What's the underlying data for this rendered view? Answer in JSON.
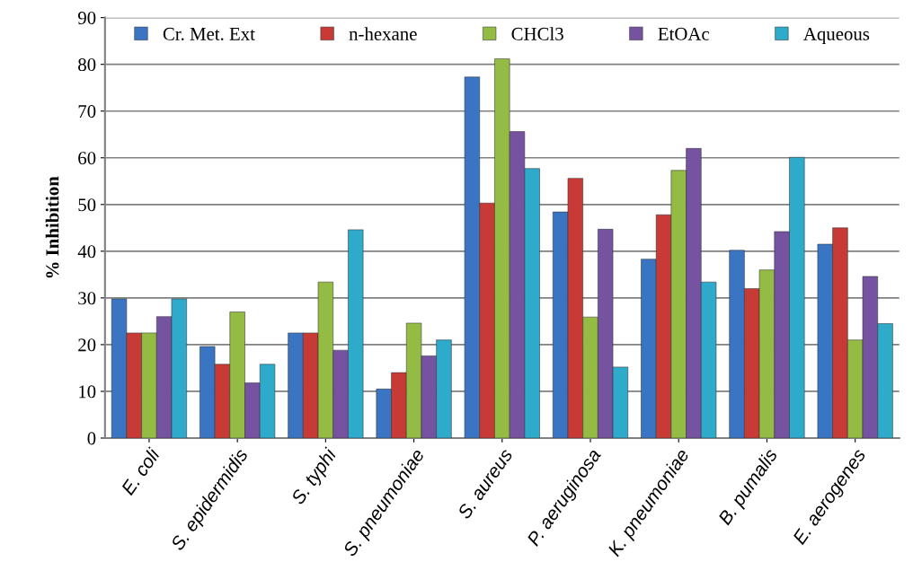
{
  "chart_data": {
    "type": "bar",
    "ylabel": "% Inhibition",
    "categories": [
      "E. coli",
      "S. epidermidis",
      "S. typhi",
      "S. pneumoniae",
      "S. aureus",
      "P. aeruginosa",
      "K. pneumoniae",
      "B. pumalis",
      "E. aerogenes"
    ],
    "series": [
      {
        "name": "Cr. Met. Ext",
        "color": "#3a75c4",
        "values": [
          29.8,
          19.6,
          22.5,
          10.5,
          77.3,
          48.4,
          38.3,
          40.2,
          41.5
        ]
      },
      {
        "name": "n-hexane",
        "color": "#c83a36",
        "values": [
          22.5,
          15.8,
          22.5,
          14,
          50.3,
          55.6,
          47.8,
          32,
          45
        ]
      },
      {
        "name": "CHCl3",
        "color": "#94bc45",
        "values": [
          22.5,
          27,
          33.4,
          24.6,
          81.2,
          25.9,
          57.3,
          36,
          21
        ]
      },
      {
        "name": "EtOAc",
        "color": "#7553a0",
        "values": [
          26,
          11.8,
          18.8,
          17.6,
          65.6,
          44.7,
          62,
          44.2,
          34.6
        ]
      },
      {
        "name": "Aqueous",
        "color": "#2eaacb",
        "values": [
          29.8,
          15.8,
          44.6,
          21,
          57.7,
          15.2,
          33.4,
          60.1,
          24.5
        ]
      }
    ],
    "ylim": [
      0,
      90
    ],
    "yticks": [
      0,
      10,
      20,
      30,
      40,
      50,
      60,
      70,
      80,
      90
    ],
    "grid": "y",
    "legend": "top"
  }
}
